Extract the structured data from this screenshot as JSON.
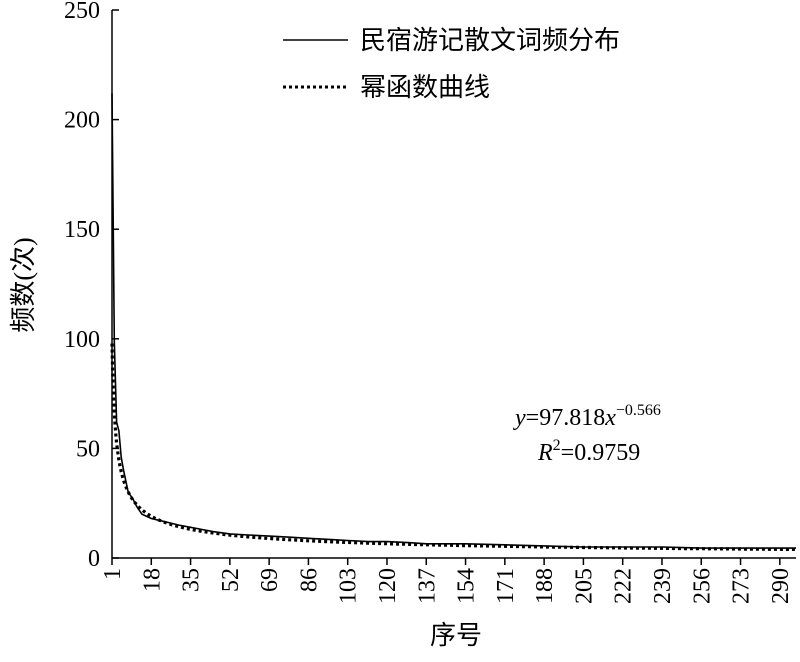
{
  "chart_data": {
    "type": "line",
    "xlabel": "序号",
    "ylabel": "频数(次)",
    "xlim": [
      1,
      297
    ],
    "ylim": [
      0,
      250
    ],
    "x_ticks": [
      "1",
      "18",
      "35",
      "52",
      "69",
      "86",
      "103",
      "120",
      "137",
      "154",
      "171",
      "188",
      "205",
      "222",
      "239",
      "256",
      "273",
      "290"
    ],
    "y_ticks": [
      "0",
      "50",
      "100",
      "150",
      "200",
      "250"
    ],
    "legend_position": "top-right",
    "series": [
      {
        "name": "民宿游记散文词频分布",
        "style": "solid",
        "points": [
          [
            1,
            212
          ],
          [
            2,
            99
          ],
          [
            3,
            62
          ],
          [
            4,
            58
          ],
          [
            5,
            46
          ],
          [
            6,
            40
          ],
          [
            7,
            35
          ],
          [
            8,
            30
          ],
          [
            10,
            27
          ],
          [
            12,
            23
          ],
          [
            14,
            20
          ],
          [
            16,
            19
          ],
          [
            18,
            18
          ],
          [
            22,
            17
          ],
          [
            26,
            16
          ],
          [
            30,
            15
          ],
          [
            35,
            14
          ],
          [
            40,
            13
          ],
          [
            45,
            12
          ],
          [
            52,
            11
          ],
          [
            60,
            10.5
          ],
          [
            69,
            10
          ],
          [
            78,
            9.5
          ],
          [
            86,
            9
          ],
          [
            95,
            8.5
          ],
          [
            103,
            8
          ],
          [
            112,
            7.5
          ],
          [
            120,
            7.5
          ],
          [
            130,
            7
          ],
          [
            137,
            6.5
          ],
          [
            154,
            6.5
          ],
          [
            171,
            6
          ],
          [
            188,
            5.5
          ],
          [
            205,
            5
          ],
          [
            222,
            5
          ],
          [
            239,
            5
          ],
          [
            256,
            4.5
          ],
          [
            273,
            4.5
          ],
          [
            290,
            4.5
          ],
          [
            297,
            4.5
          ]
        ]
      },
      {
        "name": "幂函数曲线",
        "style": "dotted",
        "formula": {
          "a": 97.818,
          "b": -0.566
        }
      }
    ],
    "annotations": {
      "equation_prefix": "y",
      "equation_mid": "=97.818",
      "equation_var": "x",
      "equation_exp": "−0.566",
      "r2_prefix": "R",
      "r2_sup": "2",
      "r2_value": "=0.9759"
    }
  }
}
